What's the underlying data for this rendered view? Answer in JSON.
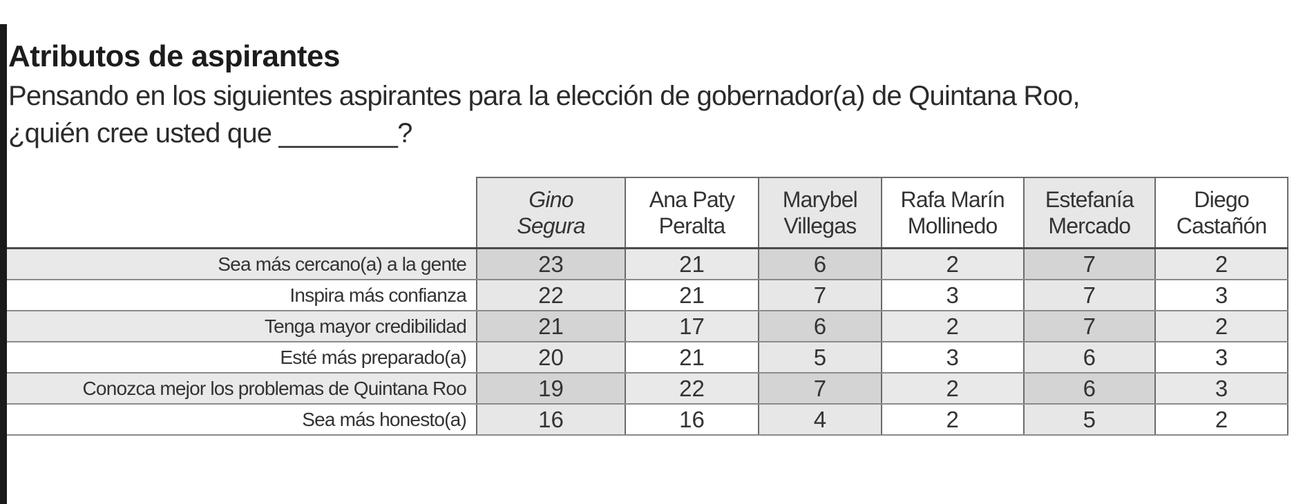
{
  "title": "Atributos de aspirantes",
  "subtitle_line1": "Pensando en los siguientes aspirantes para la elección de gobernador(a) de Quintana Roo,",
  "subtitle_line2": "¿quién cree usted que ________?",
  "chart_data": {
    "type": "table",
    "columns": [
      {
        "line1": "Gino",
        "line2": "Segura"
      },
      {
        "line1": "Ana Paty",
        "line2": "Peralta"
      },
      {
        "line1": "Marybel",
        "line2": "Villegas"
      },
      {
        "line1": "Rafa Marín",
        "line2": "Mollinedo"
      },
      {
        "line1": "Estefanía",
        "line2": "Mercado"
      },
      {
        "line1": "Diego",
        "line2": "Castañón"
      }
    ],
    "rows": [
      {
        "label": "Sea más cercano(a) a la gente",
        "values": [
          23,
          21,
          6,
          2,
          7,
          2
        ]
      },
      {
        "label": "Inspira más confianza",
        "values": [
          22,
          21,
          7,
          3,
          7,
          3
        ]
      },
      {
        "label": "Tenga mayor credibilidad",
        "values": [
          21,
          17,
          6,
          2,
          7,
          2
        ]
      },
      {
        "label": "Esté más preparado(a)",
        "values": [
          20,
          21,
          5,
          3,
          6,
          3
        ]
      },
      {
        "label": "Conozca mejor los problemas de Quintana Roo",
        "values": [
          19,
          22,
          7,
          2,
          6,
          3
        ]
      },
      {
        "label": "Sea más honesto(a)",
        "values": [
          16,
          16,
          4,
          2,
          5,
          2
        ]
      }
    ]
  }
}
